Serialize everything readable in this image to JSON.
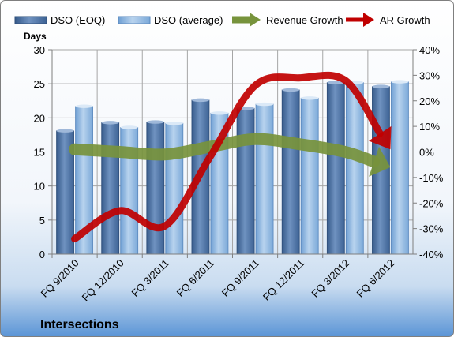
{
  "chart_data": {
    "type": "bar",
    "title": "Intersections",
    "ylabel": "Days",
    "categories": [
      "FQ 9/2010",
      "FQ 12/2010",
      "FQ 3/2011",
      "FQ 6/2011",
      "FQ 9/2011",
      "FQ 12/2011",
      "FQ 3/2012",
      "FQ 6/2012"
    ],
    "ylim": [
      0,
      30
    ],
    "yticks": [
      "0",
      "5",
      "10",
      "15",
      "20",
      "25",
      "30"
    ],
    "y2lim": [
      -40,
      40
    ],
    "y2ticks": [
      "-40%",
      "-30%",
      "-20%",
      "-10%",
      "0%",
      "10%",
      "20%",
      "30%",
      "40%"
    ],
    "grid": true,
    "legend_position": "top",
    "series": [
      {
        "name": "DSO (EOQ)",
        "kind": "bar",
        "axis": "left",
        "color": "#4a6d9c",
        "values": [
          18.1,
          19.3,
          19.4,
          22.6,
          21.4,
          24.1,
          25.2,
          24.6
        ]
      },
      {
        "name": "DSO (average)",
        "kind": "bar",
        "axis": "left",
        "color": "#8cb4dc",
        "values": [
          21.7,
          18.6,
          19.2,
          20.7,
          22.0,
          22.9,
          25.2,
          25.3
        ]
      },
      {
        "name": "Revenue Growth",
        "kind": "arrow",
        "axis": "right",
        "color": "#77933c",
        "values": [
          1,
          0,
          -1,
          2,
          5,
          3,
          0,
          -6
        ]
      },
      {
        "name": "AR Growth",
        "kind": "arrow",
        "axis": "right",
        "color": "#c00000",
        "values": [
          -34,
          -23,
          -29,
          -2,
          26,
          29,
          28,
          1
        ]
      }
    ]
  }
}
